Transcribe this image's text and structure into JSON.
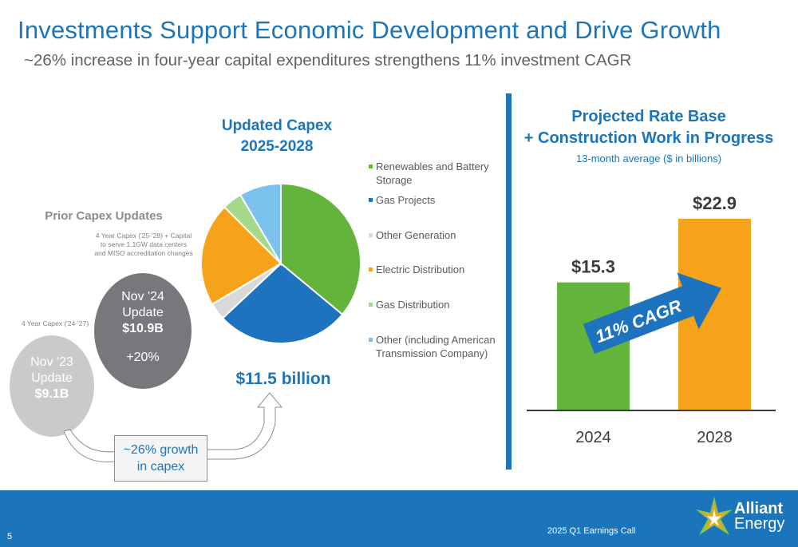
{
  "header": {
    "title": "Investments Support Economic Development and Drive Growth",
    "subtitle": "~26% increase in four-year capital expenditures strengthens 11% investment CAGR"
  },
  "pie": {
    "title_line1": "Updated Capex",
    "title_line2": "2025-2028",
    "total": "$11.5 billion"
  },
  "legend": [
    {
      "label": "Renewables and Battery Storage",
      "color": "#63b43a"
    },
    {
      "label": "Gas Projects",
      "color": "#1e73be"
    },
    {
      "label": "Other Generation",
      "color": "#d9d9d9"
    },
    {
      "label": "Electric Distribution",
      "color": "#f7a21b"
    },
    {
      "label": "Gas Distribution",
      "color": "#a5d88a"
    },
    {
      "label": "Other (including American Transmission Company)",
      "color": "#7ac2ec"
    }
  ],
  "prior": {
    "title": "Prior Capex Updates",
    "nov24_note": "4 Year Capex ('25-'28) + Capital to serve 1.1GW data centers and MISO accreditation changes",
    "nov24_line1": "Nov '24",
    "nov24_line2": "Update",
    "nov24_value": "$10.9B",
    "nov24_change": "+20%",
    "nov23_note": "4 Year Capex ('24-'27)",
    "nov23_line1": "Nov '23",
    "nov23_line2": "Update",
    "nov23_value": "$9.1B",
    "growth_line1": "~26% growth",
    "growth_line2": "in capex"
  },
  "rate_base": {
    "title_line1": "Projected Rate Base",
    "title_line2": "+ Construction Work in Progress",
    "subtitle": "13-month average ($ in billions)",
    "cagr_label": "11% CAGR"
  },
  "chart_data": [
    {
      "type": "pie",
      "title": "Updated Capex 2025-2028",
      "total": "$11.5 billion",
      "labels": [
        "Renewables and Battery Storage",
        "Gas Projects",
        "Other Generation",
        "Electric Distribution",
        "Gas Distribution",
        "Other (including American Transmission Company)"
      ],
      "values": [
        36,
        27,
        3.5,
        21,
        4,
        8.5
      ],
      "colors": [
        "#63b43a",
        "#1e73be",
        "#d9d9d9",
        "#f7a21b",
        "#a5d88a",
        "#7ac2ec"
      ]
    },
    {
      "type": "bar",
      "categories": [
        "2024",
        "2028"
      ],
      "values": [
        15.3,
        22.9
      ],
      "data_labels": [
        "$15.3",
        "$22.9"
      ],
      "colors": [
        "#63b43a",
        "#f7a21b"
      ],
      "ylim": [
        0,
        25
      ]
    }
  ],
  "footer": {
    "page": "5",
    "text": "2025 Q1 Earnings Call",
    "logo_line1": "Alliant",
    "logo_line2": "Energy",
    "bg_color": "#1b75bb"
  }
}
